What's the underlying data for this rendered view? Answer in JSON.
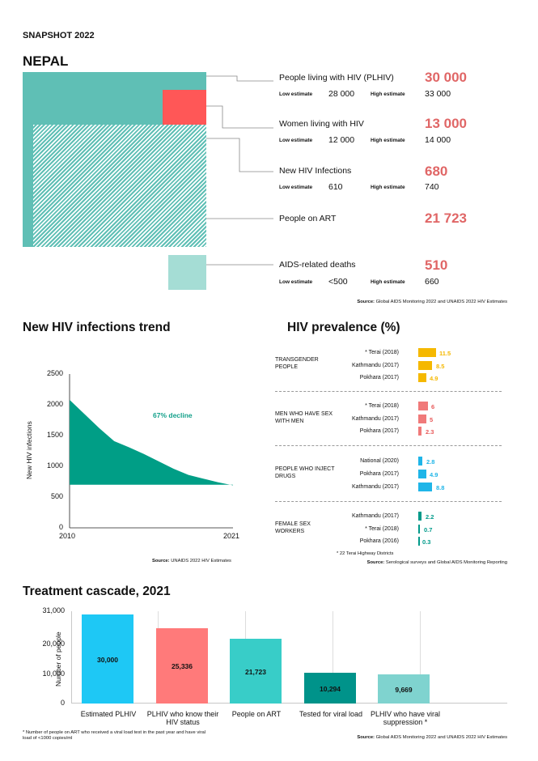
{
  "header": {
    "snapshot": "SNAPSHOT 2022",
    "country": "NEPAL"
  },
  "colors": {
    "plhiv": "#5fbfb5",
    "women": "#ff5757",
    "deaths": "#a5ddd5",
    "value": "#e06666",
    "transgender": "#f5b800",
    "msm": "#f07a7a",
    "pwid": "#1fb5e8",
    "fsw": "#009a8a",
    "trend": "#009e86",
    "trend_label": "#13a08a"
  },
  "stats": [
    {
      "label": "People living with HIV (PLHIV)",
      "value": "30 000",
      "low_label": "Low estimate",
      "low": "28 000",
      "high_label": "High estimate",
      "high": "33 000"
    },
    {
      "label": "Women living with HIV",
      "value": "13 000",
      "low_label": "Low estimate",
      "low": "12 000",
      "high_label": "High estimate",
      "high": "14 000"
    },
    {
      "label": "New HIV Infections",
      "value": "680",
      "low_label": "Low estimate",
      "low": "610",
      "high_label": "High estimate",
      "high": "740"
    },
    {
      "label": "People on ART",
      "value": "21 723"
    },
    {
      "label": "AIDS-related deaths",
      "value": "510",
      "low_label": "Low estimate",
      "low": "<500",
      "high_label": "High estimate",
      "high": "660"
    }
  ],
  "source_top": {
    "prefix": "Source:",
    "text": " Global AIDS Monitoring 2022 and UNAIDS 2022 HIV Estimates"
  },
  "trend": {
    "title": "New HIV infections trend",
    "ylabel": "New HIV infections",
    "yticks": [
      "2500",
      "2000",
      "1500",
      "1000",
      "500",
      "0"
    ],
    "xticks": [
      "2010",
      "2021"
    ],
    "annotation": "67% decline",
    "source_prefix": "Source:",
    "source_text": " UNAIDS 2022 HIV Estimates"
  },
  "chart_data": [
    {
      "type": "area",
      "title": "New HIV infections trend",
      "xlabel": "",
      "ylabel": "New HIV infections",
      "x": [
        2010,
        2011,
        2012,
        2013,
        2014,
        2015,
        2016,
        2017,
        2018,
        2019,
        2020,
        2021
      ],
      "values": [
        2080,
        1850,
        1620,
        1410,
        1310,
        1200,
        1080,
        960,
        860,
        800,
        740,
        690
      ],
      "ylim": [
        0,
        2500
      ],
      "annotation": "67% decline"
    },
    {
      "type": "bar",
      "title": "HIV prevalence (%)",
      "groups": [
        {
          "name": "TRANSGENDER PEOPLE",
          "rows": [
            {
              "label": "* Terai (2018)",
              "value": 11.5
            },
            {
              "label": "Kathmandu (2017)",
              "value": 8.5
            },
            {
              "label": "Pokhara (2017)",
              "value": 4.9
            }
          ]
        },
        {
          "name": "MEN WHO HAVE SEX WITH MEN",
          "rows": [
            {
              "label": "* Terai (2018)",
              "value": 6
            },
            {
              "label": "Kathmandu (2017)",
              "value": 5
            },
            {
              "label": "Pokhara (2017)",
              "value": 2.3
            }
          ]
        },
        {
          "name": "PEOPLE WHO INJECT DRUGS",
          "rows": [
            {
              "label": "National (2020)",
              "value": 2.8
            },
            {
              "label": "Pokhara (2017)",
              "value": 4.9
            },
            {
              "label": "Kathmandu (2017)",
              "value": 8.8
            }
          ]
        },
        {
          "name": "FEMALE SEX WORKERS",
          "rows": [
            {
              "label": "Kathmandu (2017)",
              "value": 2.2
            },
            {
              "label": "* Terai (2018)",
              "value": 0.7
            },
            {
              "label": "Pokhara (2016)",
              "value": 0.3
            }
          ]
        }
      ]
    },
    {
      "type": "bar",
      "title": "Treatment cascade, 2021",
      "ylabel": "Number of people",
      "categories": [
        "Estimated PLHIV",
        "PLHIV who know their HIV status",
        "People on ART",
        "Tested for viral load",
        "PLHIV who have viral suppression *"
      ],
      "values": [
        30000,
        25336,
        21723,
        10294,
        9669
      ],
      "value_labels": [
        "30,000",
        "25,336",
        "21,723",
        "10,294",
        "9,669"
      ],
      "ylim": [
        0,
        31000
      ],
      "yticks": [
        "31,000",
        "20,000",
        "10,000",
        "0"
      ]
    }
  ],
  "prevalence": {
    "title": "HIV prevalence (%)",
    "groups": [
      {
        "name": "TRANSGENDER PEOPLE",
        "rows": [
          {
            "label": "* Terai (2018)",
            "value": "11.5"
          },
          {
            "label": "Kathmandu (2017)",
            "value": "8.5"
          },
          {
            "label": "Pokhara (2017)",
            "value": "4.9"
          }
        ]
      },
      {
        "name": "MEN WHO HAVE SEX WITH MEN",
        "rows": [
          {
            "label": "* Terai (2018)",
            "value": "6"
          },
          {
            "label": "Kathmandu (2017)",
            "value": "5"
          },
          {
            "label": "Pokhara (2017)",
            "value": "2.3"
          }
        ]
      },
      {
        "name": "PEOPLE WHO INJECT DRUGS",
        "rows": [
          {
            "label": "National (2020)",
            "value": "2.8"
          },
          {
            "label": "Pokhara (2017)",
            "value": "4.9"
          },
          {
            "label": "Kathmandu (2017)",
            "value": "8.8"
          }
        ]
      },
      {
        "name": "FEMALE SEX WORKERS",
        "rows": [
          {
            "label": "Kathmandu (2017)",
            "value": "2.2"
          },
          {
            "label": "* Terai (2018)",
            "value": "0.7"
          },
          {
            "label": "Pokhara (2016)",
            "value": "0.3"
          }
        ]
      }
    ],
    "footnote": "* 22 Terai Highway Districts",
    "source_prefix": "Source:",
    "source_text": " Serological surveys and Global AIDS Monitoring Reporting"
  },
  "cascade": {
    "title": "Treatment cascade, 2021",
    "ylabel": "Number of people",
    "yticks": [
      "31,000",
      "20,000",
      "10,000",
      "0"
    ],
    "bars": [
      {
        "label": "Estimated PLHIV",
        "value": "30,000",
        "color": "#1ec8f5"
      },
      {
        "label": "PLHIV who know their HIV status",
        "value": "25,336",
        "color": "#ff7a7a"
      },
      {
        "label": "People on ART",
        "value": "21,723",
        "color": "#38cdc8"
      },
      {
        "label": "Tested for viral load",
        "value": "10,294",
        "color": "#00938a"
      },
      {
        "label": "PLHIV who have viral suppression *",
        "value": "9,669",
        "color": "#7fd3cf"
      }
    ],
    "footnote": "* Number of people on ART who received a viral load test in the past year and have viral load of <1000 copies/ml",
    "source_prefix": "Source:",
    "source_text": " Global AIDS Monitoring 2022 and UNAIDS 2022 HIV Estimates"
  }
}
